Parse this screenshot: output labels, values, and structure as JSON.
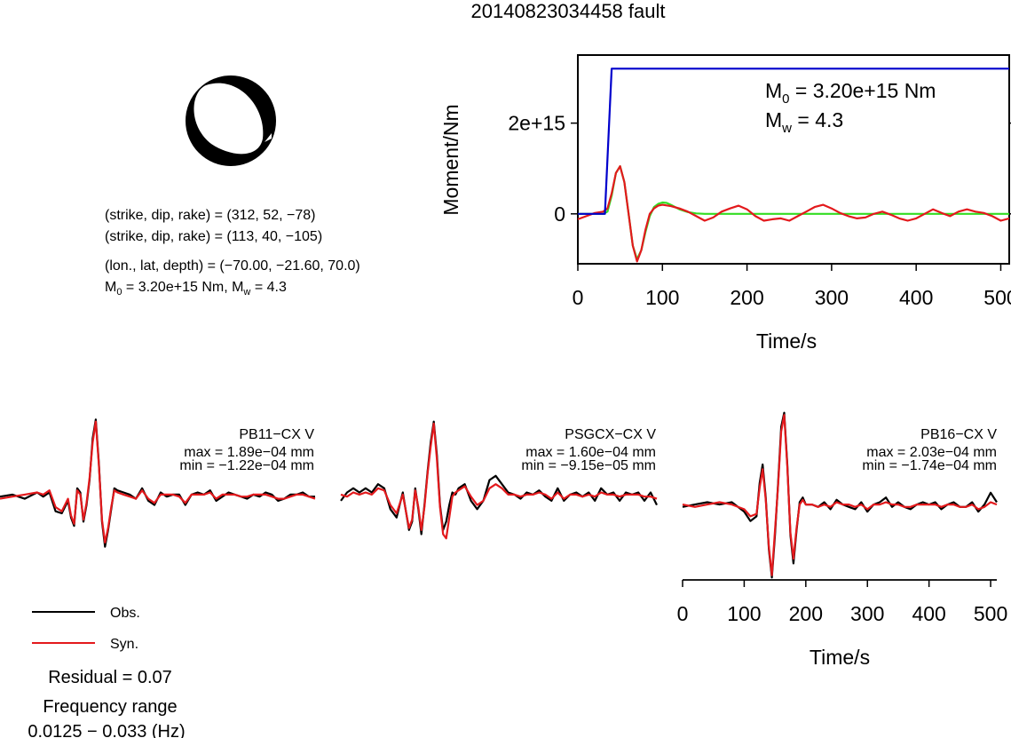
{
  "title": "20140823034458 fault",
  "mechanism": {
    "np1": "(strike, dip, rake) = (312, 52, −78)",
    "np2": "(strike, dip, rake) = (113, 40, −105)",
    "location": "(lon., lat, depth) = (−70.00, −21.60, 70.0)",
    "moment_prefix": "M",
    "moment_sub": "0",
    "moment_mid": " = 3.20e+15 Nm, M",
    "moment_sub2": "w",
    "moment_end": " = 4.3"
  },
  "stf_box": {
    "m0_prefix": "M",
    "m0_sub": "0",
    "m0_value": " = 3.20e+15 Nm",
    "mw_prefix": "M",
    "mw_sub": "w",
    "mw_value": " = 4.3"
  },
  "legend": {
    "obs": "Obs.",
    "syn": "Syn.",
    "residual": "Residual = 0.07",
    "freq_title": "Frequency range",
    "freq_value": "0.0125 − 0.033 (Hz)"
  },
  "colors": {
    "observed": "#000000",
    "synthetic": "#e3191c",
    "cumulative_moment": "#0000cc",
    "model_rate": "#33dd22"
  },
  "chart_data": [
    {
      "type": "line",
      "title": "",
      "xlabel": "Time/s",
      "ylabel": "Moment/Nm",
      "xlim": [
        0,
        510
      ],
      "ylim": [
        -1100000000000000.0,
        3500000000000000.0
      ],
      "xticks": [
        "0",
        "100",
        "200",
        "300",
        "400",
        "500"
      ],
      "yticks": [
        "0",
        "2e+15"
      ],
      "ytick_values": [
        0,
        2000000000000000.0
      ],
      "legend": "none",
      "series": [
        {
          "name": "",
          "color": "#0000cc",
          "x": [
            0,
            32,
            40,
            510
          ],
          "y": [
            0,
            0,
            3200000000000000.0,
            3200000000000000.0
          ]
        },
        {
          "name": "",
          "color": "#33dd22",
          "x": [
            0,
            20,
            30,
            35,
            40,
            45,
            50,
            55,
            60,
            65,
            70,
            75,
            80,
            85,
            90,
            95,
            100,
            105,
            110,
            115,
            120,
            130,
            140,
            150,
            160,
            180,
            200,
            250,
            300,
            350,
            400,
            450,
            510
          ],
          "y": [
            0,
            0,
            0,
            50000000000000.0,
            400000000000000.0,
            900000000000000.0,
            1050000000000000.0,
            700000000000000.0,
            0,
            -700000000000000.0,
            -1000000000000000.0,
            -800000000000000.0,
            -400000000000000.0,
            -50000000000000.0,
            150000000000000.0,
            220000000000000.0,
            250000000000000.0,
            240000000000000.0,
            200000000000000.0,
            150000000000000.0,
            100000000000000.0,
            40000000000000.0,
            10000000000000.0,
            0,
            0,
            0,
            0,
            0,
            0,
            0,
            0,
            0,
            0
          ]
        },
        {
          "name": "",
          "color": "#e3191c",
          "x": [
            0,
            10,
            20,
            30,
            35,
            40,
            45,
            50,
            55,
            60,
            65,
            70,
            75,
            80,
            85,
            90,
            95,
            100,
            110,
            120,
            130,
            140,
            150,
            160,
            170,
            180,
            190,
            200,
            210,
            220,
            230,
            240,
            250,
            260,
            270,
            280,
            290,
            300,
            310,
            320,
            330,
            340,
            350,
            360,
            370,
            380,
            390,
            400,
            410,
            420,
            430,
            440,
            450,
            460,
            470,
            480,
            490,
            500,
            510
          ],
          "y": [
            -120000000000000.0,
            -50000000000000.0,
            20000000000000.0,
            50000000000000.0,
            120000000000000.0,
            450000000000000.0,
            900000000000000.0,
            1050000000000000.0,
            700000000000000.0,
            0,
            -700000000000000.0,
            -1050000000000000.0,
            -800000000000000.0,
            -350000000000000.0,
            0,
            120000000000000.0,
            180000000000000.0,
            200000000000000.0,
            170000000000000.0,
            120000000000000.0,
            50000000000000.0,
            -50000000000000.0,
            -150000000000000.0,
            -80000000000000.0,
            50000000000000.0,
            120000000000000.0,
            180000000000000.0,
            100000000000000.0,
            -50000000000000.0,
            -150000000000000.0,
            -120000000000000.0,
            -100000000000000.0,
            -150000000000000.0,
            -50000000000000.0,
            50000000000000.0,
            150000000000000.0,
            200000000000000.0,
            120000000000000.0,
            20000000000000.0,
            -50000000000000.0,
            -100000000000000.0,
            -80000000000000.0,
            0,
            50000000000000.0,
            -20000000000000.0,
            -100000000000000.0,
            -150000000000000.0,
            -100000000000000.0,
            0,
            100000000000000.0,
            20000000000000.0,
            -50000000000000.0,
            50000000000000.0,
            100000000000000.0,
            50000000000000.0,
            20000000000000.0,
            -50000000000000.0,
            -150000000000000.0,
            -100000000000000.0
          ]
        }
      ]
    },
    {
      "type": "line",
      "station": "PB11−CX V",
      "max": "max = 1.89e−04 mm",
      "min": "min = −1.22e−04 mm",
      "xlim": [
        0,
        510
      ],
      "ylim": [
        -1.4,
        1.9
      ],
      "series": [
        {
          "name": "Obs.",
          "color": "#000000",
          "x": [
            0,
            20,
            40,
            60,
            70,
            80,
            90,
            100,
            110,
            115,
            120,
            125,
            130,
            135,
            140,
            145,
            150,
            155,
            160,
            165,
            170,
            175,
            180,
            185,
            190,
            200,
            210,
            220,
            230,
            240,
            250,
            260,
            270,
            280,
            290,
            300,
            310,
            320,
            330,
            340,
            350,
            360,
            370,
            380,
            390,
            400,
            410,
            420,
            430,
            440,
            450,
            460,
            470,
            480,
            490,
            500,
            510
          ],
          "y": [
            0,
            0.05,
            -0.05,
            0.1,
            0,
            0.1,
            -0.35,
            -0.4,
            -0.1,
            -0.5,
            -0.7,
            0.2,
            0.1,
            -0.6,
            -0.2,
            0.4,
            1.4,
            1.85,
            0.8,
            -0.6,
            -1.2,
            -0.8,
            -0.3,
            0.2,
            0.15,
            0.1,
            0.05,
            -0.05,
            0.2,
            -0.1,
            -0.2,
            0.1,
            0,
            0.05,
            0.05,
            -0.2,
            0.05,
            0.1,
            0.05,
            0.15,
            -0.1,
            0,
            0.1,
            0.05,
            0,
            -0.05,
            0.05,
            0,
            0.1,
            0.05,
            -0.1,
            -0.05,
            0.05,
            0.05,
            0.1,
            0,
            0
          ]
        },
        {
          "name": "Syn.",
          "color": "#e3191c",
          "x": [
            0,
            20,
            40,
            60,
            70,
            80,
            90,
            100,
            110,
            115,
            120,
            125,
            130,
            135,
            140,
            145,
            150,
            155,
            160,
            165,
            170,
            175,
            180,
            185,
            190,
            200,
            210,
            220,
            230,
            240,
            250,
            260,
            270,
            280,
            290,
            300,
            310,
            320,
            330,
            340,
            350,
            360,
            370,
            380,
            390,
            400,
            410,
            420,
            430,
            440,
            450,
            460,
            470,
            480,
            490,
            500,
            510
          ],
          "y": [
            -0.05,
            0,
            0.05,
            0.1,
            0.05,
            0.15,
            -0.25,
            -0.35,
            -0.05,
            -0.45,
            -0.65,
            0.15,
            0.05,
            -0.55,
            -0.15,
            0.45,
            1.3,
            1.8,
            0.75,
            -0.55,
            -1.1,
            -0.75,
            -0.25,
            0.15,
            0.1,
            0.05,
            0,
            -0.05,
            0.15,
            -0.05,
            -0.15,
            0.05,
            0.05,
            0.05,
            0,
            -0.15,
            0.05,
            0.05,
            0.05,
            0.1,
            -0.05,
            0.05,
            0.05,
            0.05,
            0,
            0,
            0.05,
            0.05,
            0.05,
            0,
            -0.05,
            -0.05,
            0,
            0.05,
            0.05,
            0,
            -0.05
          ]
        }
      ]
    },
    {
      "type": "line",
      "station": "PSGCX−CX V",
      "max": "max = 1.60e−04 mm",
      "min": "min = −9.15e−05 mm",
      "xlim": [
        0,
        510
      ],
      "ylim": [
        -1.4,
        1.9
      ],
      "series": [
        {
          "name": "Obs.",
          "color": "#000000",
          "x": [
            0,
            10,
            20,
            30,
            40,
            50,
            60,
            70,
            80,
            90,
            100,
            110,
            115,
            120,
            125,
            130,
            135,
            140,
            145,
            150,
            155,
            160,
            165,
            170,
            175,
            180,
            185,
            190,
            200,
            210,
            220,
            230,
            240,
            250,
            260,
            270,
            280,
            290,
            300,
            310,
            320,
            330,
            340,
            350,
            360,
            370,
            380,
            390,
            400,
            410,
            420,
            430,
            440,
            450,
            460,
            470,
            480,
            490,
            500,
            510
          ],
          "y": [
            -0.1,
            0.1,
            0.2,
            0.1,
            0.2,
            0.1,
            0.3,
            0.2,
            -0.3,
            -0.5,
            0.1,
            -0.8,
            -0.6,
            0.2,
            -0.3,
            -0.9,
            -0.2,
            0.6,
            1.3,
            1.8,
            1.0,
            -0.2,
            -0.8,
            -0.6,
            -0.2,
            0.1,
            0.05,
            0.2,
            0.3,
            -0.1,
            -0.3,
            -0.1,
            0.4,
            0.5,
            0.3,
            0.1,
            0.05,
            -0.05,
            0.1,
            0.05,
            0.15,
            0,
            -0.1,
            0.2,
            -0.1,
            0.05,
            0.1,
            0,
            0.1,
            -0.1,
            0.2,
            0.05,
            0.1,
            -0.1,
            0.1,
            0.05,
            0.1,
            -0.1,
            0.1,
            -0.2
          ]
        },
        {
          "name": "Syn.",
          "color": "#e3191c",
          "x": [
            0,
            10,
            20,
            30,
            40,
            50,
            60,
            70,
            80,
            90,
            100,
            110,
            115,
            120,
            125,
            130,
            135,
            140,
            145,
            150,
            155,
            160,
            165,
            170,
            175,
            180,
            185,
            190,
            200,
            210,
            220,
            230,
            240,
            250,
            260,
            270,
            280,
            290,
            300,
            310,
            320,
            330,
            340,
            350,
            360,
            370,
            380,
            390,
            400,
            410,
            420,
            430,
            440,
            450,
            460,
            470,
            480,
            490,
            500,
            510
          ],
          "y": [
            0.05,
            0,
            0.1,
            0.05,
            0.1,
            0.05,
            0.2,
            0.15,
            -0.2,
            -0.4,
            0.05,
            -0.75,
            -0.55,
            0.15,
            -0.25,
            -0.8,
            -0.25,
            0.55,
            1.2,
            1.75,
            0.9,
            -0.25,
            -0.9,
            -1.0,
            -0.5,
            0,
            0.1,
            0.15,
            0.25,
            0,
            -0.2,
            -0.1,
            0.2,
            0.3,
            0.2,
            0.05,
            0.05,
            0,
            0.05,
            0.05,
            0.1,
            0.05,
            -0.05,
            0.1,
            -0.05,
            0.05,
            0.05,
            0,
            0.05,
            0,
            0.1,
            0.05,
            0.05,
            0,
            0.05,
            0.05,
            0.05,
            0,
            0,
            -0.05
          ]
        }
      ]
    },
    {
      "type": "line",
      "station": "PB16−CX V",
      "max": "max = 2.03e−04 mm",
      "min": "min = −1.74e−04 mm",
      "xlim": [
        0,
        510
      ],
      "ylim": [
        -1.4,
        1.9
      ],
      "xlabel": "Time/s",
      "xticks": [
        "0",
        "100",
        "200",
        "300",
        "400",
        "500"
      ],
      "series": [
        {
          "name": "Obs.",
          "color": "#000000",
          "x": [
            0,
            20,
            40,
            60,
            80,
            100,
            110,
            120,
            125,
            130,
            135,
            140,
            145,
            150,
            155,
            160,
            165,
            170,
            175,
            180,
            185,
            190,
            195,
            200,
            210,
            220,
            230,
            240,
            250,
            260,
            270,
            280,
            290,
            300,
            310,
            320,
            330,
            340,
            350,
            360,
            370,
            380,
            390,
            400,
            410,
            420,
            430,
            440,
            450,
            460,
            470,
            480,
            490,
            500,
            510
          ],
          "y": [
            0,
            0.05,
            0.1,
            0.05,
            0.1,
            -0.1,
            -0.3,
            -0.2,
            0.5,
            0.9,
            0.2,
            -0.9,
            -1.5,
            -0.6,
            0.5,
            1.7,
            2.0,
            0.9,
            -0.6,
            -1.2,
            -0.5,
            0.1,
            0.2,
            0.05,
            0.05,
            0,
            0.1,
            -0.05,
            0.15,
            0.05,
            0,
            -0.05,
            0.1,
            -0.1,
            0.05,
            0.1,
            0.2,
            0,
            0.1,
            0,
            -0.05,
            0.05,
            0.1,
            0.05,
            0.1,
            -0.05,
            0.05,
            0.1,
            0,
            0,
            0.1,
            -0.1,
            0.05,
            0.3,
            0.1
          ]
        },
        {
          "name": "Syn.",
          "color": "#e3191c",
          "x": [
            0,
            20,
            40,
            60,
            80,
            100,
            110,
            120,
            125,
            130,
            135,
            140,
            145,
            150,
            155,
            160,
            165,
            170,
            175,
            180,
            185,
            190,
            195,
            200,
            210,
            220,
            230,
            240,
            250,
            260,
            270,
            280,
            290,
            300,
            310,
            320,
            330,
            340,
            350,
            360,
            370,
            380,
            390,
            400,
            410,
            420,
            430,
            440,
            450,
            460,
            470,
            480,
            490,
            500,
            510
          ],
          "y": [
            0.05,
            0,
            0.05,
            0.1,
            0.05,
            -0.05,
            -0.2,
            -0.15,
            0.4,
            0.8,
            0.15,
            -0.85,
            -1.45,
            -0.5,
            0.45,
            1.6,
            1.95,
            0.85,
            -0.55,
            -1.1,
            -0.45,
            0.05,
            0.15,
            0.05,
            0.05,
            0,
            0.05,
            0,
            0.1,
            0.05,
            0.05,
            0,
            0.05,
            -0.05,
            0.05,
            0.05,
            0.1,
            0.05,
            0.05,
            0,
            0,
            0.05,
            0.05,
            0.05,
            0.05,
            0,
            0.05,
            0.05,
            0,
            0,
            0.05,
            -0.05,
            0,
            0.1,
            0.05
          ]
        }
      ]
    }
  ]
}
